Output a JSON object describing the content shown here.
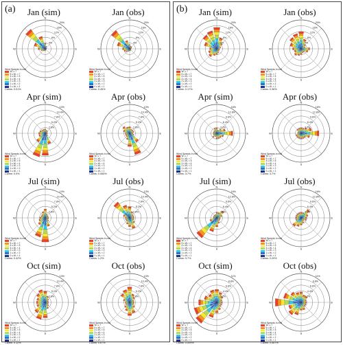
{
  "panels": [
    {
      "label": "(a)"
    },
    {
      "label": "(b)"
    }
  ],
  "legend": {
    "title": "Wind Speeds in m/s",
    "bins": [
      {
        "label": "Wₛ ≥ 7",
        "color": "#e8402a"
      },
      {
        "label": "5 ≤ Wₛ < 7",
        "color": "#f7931e"
      },
      {
        "label": "4 ≤ Wₛ < 5",
        "color": "#f2ea3a"
      },
      {
        "label": "3 ≤ Wₛ < 4",
        "color": "#b6d957"
      },
      {
        "label": "2 ≤ Wₛ < 3",
        "color": "#33c7e0"
      },
      {
        "label": "1 ≤ Wₛ < 2",
        "color": "#2e6fd1"
      },
      {
        "label": "0 ≤ Wₛ < 1",
        "color": "#1b2f8c"
      }
    ]
  },
  "chart_data": [
    {
      "type": "wind-rose",
      "panel": "a",
      "title": "Jan (sim)",
      "ring_labels": [
        "4%",
        "8%",
        "12%",
        "16%",
        "20%"
      ],
      "max_percent": 20,
      "calms": "Calms: 0.01%",
      "directions_deg": [
        0,
        22.5,
        45,
        67.5,
        90,
        112.5,
        135,
        157.5,
        180,
        202.5,
        225,
        247.5,
        270,
        292.5,
        315,
        337.5
      ],
      "percent": [
        4,
        2,
        1.5,
        1,
        0.8,
        0.8,
        0.8,
        1,
        1.5,
        1.5,
        2,
        3,
        5,
        8,
        17,
        9
      ]
    },
    {
      "type": "wind-rose",
      "panel": "a",
      "title": "Jan (obs)",
      "ring_labels": [
        "4%",
        "8%",
        "12%",
        "16%",
        "20%"
      ],
      "max_percent": 20,
      "calms": "Calms: 0.45%",
      "directions_deg": [
        0,
        22.5,
        45,
        67.5,
        90,
        112.5,
        135,
        157.5,
        180,
        202.5,
        225,
        247.5,
        270,
        292.5,
        315,
        337.5
      ],
      "percent": [
        3,
        2,
        2,
        1.5,
        1,
        1,
        1,
        1.5,
        1.5,
        2,
        3,
        4,
        5,
        9,
        16,
        6
      ]
    },
    {
      "type": "wind-rose",
      "panel": "a",
      "title": "Apr (sim)",
      "ring_labels": [
        "2.6%",
        "5.2%",
        "7.8%",
        "10.4%",
        "13%"
      ],
      "max_percent": 13,
      "calms": "Calms: 0.0%",
      "directions_deg": [
        0,
        22.5,
        45,
        67.5,
        90,
        112.5,
        135,
        157.5,
        180,
        202.5,
        225,
        247.5,
        270,
        292.5,
        315,
        337.5
      ],
      "percent": [
        2,
        1.5,
        1.5,
        1,
        1,
        1,
        1.5,
        5,
        10,
        11,
        5,
        3,
        3,
        2.5,
        2,
        2
      ]
    },
    {
      "type": "wind-rose",
      "panel": "a",
      "title": "Apr (obs)",
      "ring_labels": [
        "2.6%",
        "5.2%",
        "7.8%",
        "10.4%",
        "13%"
      ],
      "max_percent": 13,
      "calms": "Calms: 0.065%",
      "directions_deg": [
        0,
        22.5,
        45,
        67.5,
        90,
        112.5,
        135,
        157.5,
        180,
        202.5,
        225,
        247.5,
        270,
        292.5,
        315,
        337.5
      ],
      "percent": [
        3,
        2,
        2,
        2,
        1.5,
        2,
        5,
        10,
        6,
        3,
        2,
        2,
        2,
        3,
        4,
        3
      ]
    },
    {
      "type": "wind-rose",
      "panel": "a",
      "title": "Jul (sim)",
      "ring_labels": [
        "2.6%",
        "5.2%",
        "7.8%",
        "10.4%",
        "13%"
      ],
      "max_percent": 13,
      "calms": "Calms: 0.42%",
      "directions_deg": [
        0,
        22.5,
        45,
        67.5,
        90,
        112.5,
        135,
        157.5,
        180,
        202.5,
        225,
        247.5,
        270,
        292.5,
        315,
        337.5
      ],
      "percent": [
        4,
        2,
        1.5,
        1.5,
        1.5,
        1.5,
        2,
        4,
        11,
        9,
        4,
        3,
        2.5,
        2,
        2,
        3
      ]
    },
    {
      "type": "wind-rose",
      "panel": "a",
      "title": "Jul (obs)",
      "ring_labels": [
        "2.6%",
        "5.2%",
        "7.8%",
        "10.4%",
        "13%"
      ],
      "max_percent": 13,
      "calms": "Calms: 1.2%",
      "directions_deg": [
        0,
        22.5,
        45,
        67.5,
        90,
        112.5,
        135,
        157.5,
        180,
        202.5,
        225,
        247.5,
        270,
        292.5,
        315,
        337.5
      ],
      "percent": [
        5,
        3,
        2,
        2,
        2,
        2,
        3,
        5,
        4,
        3,
        2,
        2,
        2,
        3,
        9,
        6
      ]
    },
    {
      "type": "wind-rose",
      "panel": "a",
      "title": "Oct (sim)",
      "ring_labels": [
        "2.6%",
        "5.2%",
        "7.8%",
        "10.4%",
        "13%"
      ],
      "max_percent": 13,
      "calms": "Calms: 0.12%",
      "directions_deg": [
        0,
        22.5,
        45,
        67.5,
        90,
        112.5,
        135,
        157.5,
        180,
        202.5,
        225,
        247.5,
        270,
        292.5,
        315,
        337.5
      ],
      "percent": [
        5,
        3,
        2,
        1.5,
        1.5,
        1.5,
        2,
        3,
        7,
        8,
        6,
        4,
        4,
        4,
        5,
        6
      ]
    },
    {
      "type": "wind-rose",
      "panel": "a",
      "title": "Oct (obs)",
      "ring_labels": [
        "2.6%",
        "5.2%",
        "7.8%",
        "10.4%",
        "13%"
      ],
      "max_percent": 13,
      "calms": "Calms: 0.67%",
      "directions_deg": [
        0,
        22.5,
        45,
        67.5,
        90,
        112.5,
        135,
        157.5,
        180,
        202.5,
        225,
        247.5,
        270,
        292.5,
        315,
        337.5
      ],
      "percent": [
        7,
        4,
        3,
        2,
        2,
        2,
        3,
        5,
        6,
        4,
        3,
        2,
        2,
        3,
        5,
        6
      ]
    },
    {
      "type": "wind-rose",
      "panel": "b",
      "title": "Jan (sim)",
      "ring_labels": [
        "4%",
        "8%",
        "12%",
        "16%",
        "20%"
      ],
      "max_percent": 20,
      "calms": "Calms: 0.17%",
      "directions_deg": [
        0,
        22.5,
        45,
        67.5,
        90,
        112.5,
        135,
        157.5,
        180,
        202.5,
        225,
        247.5,
        270,
        292.5,
        315,
        337.5
      ],
      "percent": [
        15,
        8,
        5,
        3,
        2,
        2,
        2,
        3,
        4,
        5,
        7,
        6,
        5,
        9,
        12,
        13
      ]
    },
    {
      "type": "wind-rose",
      "panel": "b",
      "title": "Jan (obs)",
      "ring_labels": [
        "4%",
        "8%",
        "12%",
        "16%",
        "20%"
      ],
      "max_percent": 20,
      "calms": "Calms: 0.36%",
      "directions_deg": [
        0,
        22.5,
        45,
        67.5,
        90,
        112.5,
        135,
        157.5,
        180,
        202.5,
        225,
        247.5,
        270,
        292.5,
        315,
        337.5
      ],
      "percent": [
        12,
        7,
        4,
        3,
        6,
        5,
        3,
        3,
        4,
        5,
        6,
        5,
        6,
        8,
        10,
        11
      ]
    },
    {
      "type": "wind-rose",
      "panel": "b",
      "title": "Apr (sim)",
      "ring_labels": [
        "3.2%",
        "6.4%",
        "9.6%",
        "12.8%",
        "16%"
      ],
      "max_percent": 16,
      "calms": "Calms: 3.7%",
      "directions_deg": [
        0,
        22.5,
        45,
        67.5,
        90,
        112.5,
        135,
        157.5,
        180,
        202.5,
        225,
        247.5,
        270,
        292.5,
        315,
        337.5
      ],
      "percent": [
        3,
        2,
        3,
        5,
        9,
        4,
        3,
        3,
        3,
        2,
        3,
        2,
        2,
        2,
        2,
        3
      ]
    },
    {
      "type": "wind-rose",
      "panel": "b",
      "title": "Apr (obs)",
      "ring_labels": [
        "3.2%",
        "6.4%",
        "9.6%",
        "12.8%",
        "16%"
      ],
      "max_percent": 16,
      "calms": "Calms: 3.7%",
      "directions_deg": [
        0,
        22.5,
        45,
        67.5,
        90,
        112.5,
        135,
        157.5,
        180,
        202.5,
        225,
        247.5,
        270,
        292.5,
        315,
        337.5
      ],
      "percent": [
        3,
        3,
        4,
        6,
        10,
        5,
        3,
        3,
        3,
        3,
        3,
        3,
        2,
        2,
        3,
        3
      ]
    },
    {
      "type": "wind-rose",
      "panel": "b",
      "title": "Jul (sim)",
      "ring_labels": [
        "3.2%",
        "6.4%",
        "9.6%",
        "12.8%",
        "16%"
      ],
      "max_percent": 16,
      "calms": "Calms: 9.7%",
      "directions_deg": [
        0,
        22.5,
        45,
        67.5,
        90,
        112.5,
        135,
        157.5,
        180,
        202.5,
        225,
        247.5,
        270,
        292.5,
        315,
        337.5
      ],
      "percent": [
        3,
        3,
        5,
        3,
        2,
        2,
        2,
        3,
        5,
        8,
        14,
        4,
        2,
        2,
        2,
        2
      ]
    },
    {
      "type": "wind-rose",
      "panel": "b",
      "title": "Jul (obs)",
      "ring_labels": [
        "3.2%",
        "6.4%",
        "9.6%",
        "12.8%",
        "16%"
      ],
      "max_percent": 16,
      "calms": "Calms: 0.29%",
      "directions_deg": [
        0,
        22.5,
        45,
        67.5,
        90,
        112.5,
        135,
        157.5,
        180,
        202.5,
        225,
        247.5,
        270,
        292.5,
        315,
        337.5
      ],
      "percent": [
        3,
        3,
        6,
        4,
        3,
        3,
        2,
        3,
        4,
        5,
        6,
        3,
        3,
        3,
        3,
        3
      ]
    },
    {
      "type": "wind-rose",
      "panel": "b",
      "title": "Oct (sim)",
      "ring_labels": [
        "2.2%",
        "4.4%",
        "6.6%",
        "8.8%",
        "11%"
      ],
      "max_percent": 11,
      "calms": "Calms: 0.009%",
      "directions_deg": [
        0,
        22.5,
        45,
        67.5,
        90,
        112.5,
        135,
        157.5,
        180,
        202.5,
        225,
        247.5,
        270,
        292.5,
        315,
        337.5
      ],
      "percent": [
        5,
        4,
        3,
        2,
        2,
        2,
        2,
        3,
        4,
        6,
        10,
        9,
        7,
        5,
        4,
        5
      ]
    },
    {
      "type": "wind-rose",
      "panel": "b",
      "title": "Oct (obs)",
      "ring_labels": [
        "2.2%",
        "4.4%",
        "6.6%",
        "8.8%",
        "11%"
      ],
      "max_percent": 11,
      "calms": "Calms: 0.067%",
      "directions_deg": [
        0,
        22.5,
        45,
        67.5,
        90,
        112.5,
        135,
        157.5,
        180,
        202.5,
        225,
        247.5,
        270,
        292.5,
        315,
        337.5
      ],
      "percent": [
        4,
        3,
        3,
        2,
        2,
        2,
        2,
        3,
        3,
        5,
        6,
        5,
        10,
        7,
        5,
        4
      ]
    }
  ]
}
